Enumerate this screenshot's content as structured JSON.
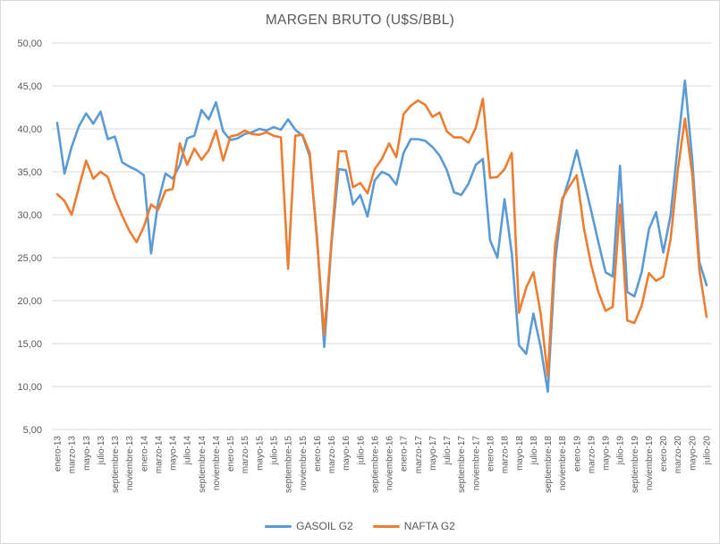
{
  "colors": {
    "title_text": "#595959",
    "tick_text": "#595959",
    "gridline": "#d9d9d9",
    "background": "#ffffff",
    "gasoil_blue": "#5B9BD5",
    "nafta_orange": "#ED7D31"
  },
  "legend": {
    "gasoil_label": "GASOIL G2",
    "nafta_label": "NAFTA G2"
  },
  "chart_data": {
    "type": "line",
    "title": "MARGEN BRUTO (U$S/BBL)",
    "xlabel": "",
    "ylabel": "",
    "ylim": [
      5,
      50
    ],
    "y_tick_step": 5,
    "grid": true,
    "legend_position": "bottom",
    "x_frequency": "monthly",
    "x_start": "enero-13",
    "x_end": "julio-20",
    "y_tick_labels": [
      "50,00",
      "45,00",
      "40,00",
      "35,00",
      "30,00",
      "25,00",
      "20,00",
      "15,00",
      "10,00",
      "5,00"
    ],
    "x_tick_labels": [
      "enero-13",
      "marzo-13",
      "mayo-13",
      "julio-13",
      "septiembre-13",
      "noviembre-13",
      "enero-14",
      "marzo-14",
      "mayo-14",
      "julio-14",
      "septiembre-14",
      "noviembre-14",
      "enero-15",
      "marzo-15",
      "mayo-15",
      "julio-15",
      "septiembre-15",
      "noviembre-15",
      "enero-16",
      "marzo-16",
      "mayo-16",
      "julio-16",
      "septiembre-16",
      "noviembre-16",
      "enero-17",
      "marzo-17",
      "mayo-17",
      "julio-17",
      "septiembre-17",
      "noviembre-17",
      "enero-18",
      "marzo-18",
      "mayo-18",
      "julio-18",
      "septiembre-18",
      "noviembre-18",
      "enero-19",
      "marzo-19",
      "mayo-19",
      "julio-19",
      "septiembre-19",
      "noviembre-19",
      "enero-20",
      "marzo-20",
      "mayo-20",
      "julio-20"
    ],
    "series": [
      {
        "name": "GASOIL G2",
        "color": "#5B9BD5",
        "values": [
          40.7,
          34.8,
          37.9,
          40.3,
          41.8,
          40.6,
          42.0,
          38.8,
          39.1,
          36.1,
          35.6,
          35.2,
          34.6,
          25.5,
          31.5,
          34.8,
          34.2,
          35.8,
          38.9,
          39.2,
          42.2,
          41.1,
          43.1,
          39.7,
          38.7,
          38.9,
          39.4,
          39.6,
          40.0,
          39.8,
          40.2,
          39.9,
          41.1,
          39.9,
          39.2,
          36.8,
          27.5,
          14.6,
          26.5,
          35.3,
          35.2,
          31.2,
          32.3,
          29.8,
          34.0,
          35.0,
          34.6,
          33.5,
          37.2,
          38.8,
          38.8,
          38.6,
          37.9,
          36.9,
          35.2,
          32.6,
          32.3,
          33.6,
          35.8,
          36.5,
          27.0,
          25.0,
          31.8,
          25.5,
          14.8,
          13.8,
          18.5,
          14.6,
          9.4,
          24.5,
          31.6,
          34.3,
          37.5,
          34.0,
          30.5,
          26.8,
          23.3,
          22.8,
          35.7,
          21.0,
          20.5,
          23.3,
          28.3,
          30.3,
          25.6,
          29.9,
          38.0,
          45.6,
          36.5,
          24.5,
          21.8
        ]
      },
      {
        "name": "NAFTA G2",
        "color": "#ED7D31",
        "values": [
          32.4,
          31.6,
          30.0,
          33.2,
          36.3,
          34.2,
          35.0,
          34.4,
          31.9,
          29.9,
          28.1,
          26.8,
          28.6,
          31.2,
          30.6,
          32.8,
          33.0,
          38.3,
          35.8,
          37.7,
          36.4,
          37.5,
          39.8,
          36.3,
          39.1,
          39.3,
          39.8,
          39.4,
          39.3,
          39.6,
          39.2,
          39.0,
          23.7,
          39.2,
          39.3,
          37.2,
          27.1,
          16.0,
          26.8,
          37.4,
          37.4,
          33.2,
          33.7,
          32.5,
          35.3,
          36.5,
          38.3,
          36.7,
          41.7,
          42.7,
          43.3,
          42.8,
          41.4,
          41.9,
          39.7,
          39.0,
          39.0,
          38.4,
          40.1,
          43.5,
          34.3,
          34.4,
          35.3,
          37.2,
          18.6,
          21.5,
          23.3,
          18.5,
          11.2,
          26.4,
          31.9,
          33.3,
          34.6,
          28.4,
          24.2,
          21.0,
          18.8,
          19.3,
          31.2,
          17.7,
          17.4,
          19.4,
          23.2,
          22.3,
          22.8,
          27.1,
          35.1,
          41.2,
          34.8,
          23.6,
          18.1
        ]
      }
    ]
  }
}
